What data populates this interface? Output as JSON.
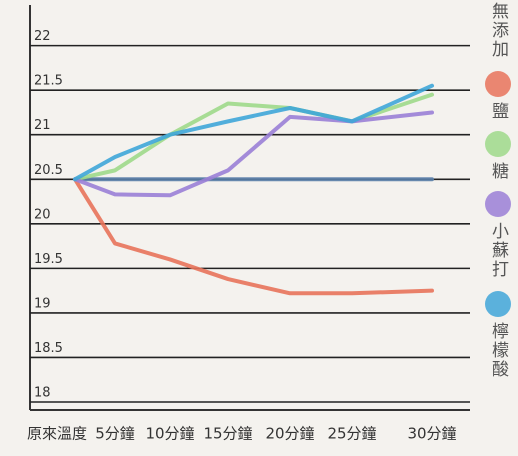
{
  "chart_data": {
    "type": "line",
    "categories": [
      "原來溫度",
      "5分鐘",
      "10分鐘",
      "15分鐘",
      "20分鐘",
      "25分鐘",
      "30分鐘"
    ],
    "series": [
      {
        "name": "無添加",
        "color": "#5a7fa8",
        "values": [
          20.5,
          20.5,
          20.5,
          20.5,
          20.5,
          20.5,
          20.5
        ]
      },
      {
        "name": "鹽",
        "color": "#e8735a",
        "values": [
          20.5,
          19.78,
          19.6,
          19.38,
          19.22,
          19.22,
          19.25
        ]
      },
      {
        "name": "糖",
        "color": "#9ed98a",
        "values": [
          20.5,
          20.6,
          21.0,
          21.35,
          21.3,
          21.15,
          21.45
        ]
      },
      {
        "name": "小蘇打",
        "color": "#9a7fd6",
        "values": [
          20.5,
          20.33,
          20.32,
          20.6,
          21.2,
          21.15,
          21.25
        ]
      },
      {
        "name": "檸檬酸",
        "color": "#3fa6d8",
        "values": [
          20.5,
          20.75,
          21.0,
          21.15,
          21.3,
          21.15,
          21.55
        ]
      }
    ],
    "ylim": [
      18,
      22.4
    ],
    "yticks": [
      18,
      18.5,
      19,
      19.5,
      20,
      20.5,
      21,
      21.5,
      22
    ],
    "grid": true
  }
}
